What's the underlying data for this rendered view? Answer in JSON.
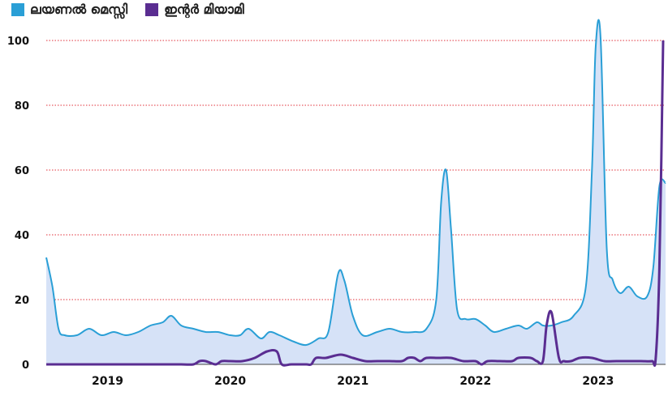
{
  "chart_data": {
    "type": "line",
    "title": "",
    "xlabel": "",
    "ylabel": "",
    "ylim": [
      0,
      100
    ],
    "y_ticks": [
      "0",
      "20",
      "40",
      "60",
      "80",
      "100"
    ],
    "x_tick_labels": [
      "2019",
      "2020",
      "2021",
      "2022",
      "2023"
    ],
    "grid": "horizontal dotted red",
    "legend_position": "top-left",
    "series": [
      {
        "name": "ലയണൽ മെസ്സി",
        "color": "#2a9fd6",
        "fill": "#d6e2f7",
        "points": [
          [
            2018.5,
            33
          ],
          [
            2018.55,
            24
          ],
          [
            2018.6,
            11
          ],
          [
            2018.65,
            9
          ],
          [
            2018.75,
            9
          ],
          [
            2018.85,
            11
          ],
          [
            2018.95,
            9
          ],
          [
            2019.05,
            10
          ],
          [
            2019.15,
            9
          ],
          [
            2019.25,
            10
          ],
          [
            2019.35,
            12
          ],
          [
            2019.45,
            13
          ],
          [
            2019.52,
            15
          ],
          [
            2019.6,
            12
          ],
          [
            2019.7,
            11
          ],
          [
            2019.8,
            10
          ],
          [
            2019.9,
            10
          ],
          [
            2020.0,
            9
          ],
          [
            2020.08,
            9
          ],
          [
            2020.15,
            11
          ],
          [
            2020.25,
            8
          ],
          [
            2020.32,
            10
          ],
          [
            2020.4,
            9
          ],
          [
            2020.52,
            7
          ],
          [
            2020.62,
            6
          ],
          [
            2020.72,
            8
          ],
          [
            2020.8,
            10
          ],
          [
            2020.88,
            28
          ],
          [
            2020.93,
            26
          ],
          [
            2021.0,
            15
          ],
          [
            2021.08,
            9
          ],
          [
            2021.2,
            10
          ],
          [
            2021.3,
            11
          ],
          [
            2021.4,
            10
          ],
          [
            2021.5,
            10
          ],
          [
            2021.6,
            11
          ],
          [
            2021.68,
            20
          ],
          [
            2021.72,
            50
          ],
          [
            2021.76,
            60
          ],
          [
            2021.8,
            42
          ],
          [
            2021.85,
            17
          ],
          [
            2021.92,
            14
          ],
          [
            2022.0,
            14
          ],
          [
            2022.08,
            12
          ],
          [
            2022.15,
            10
          ],
          [
            2022.25,
            11
          ],
          [
            2022.35,
            12
          ],
          [
            2022.42,
            11
          ],
          [
            2022.5,
            13
          ],
          [
            2022.55,
            12
          ],
          [
            2022.62,
            12
          ],
          [
            2022.7,
            13
          ],
          [
            2022.8,
            15
          ],
          [
            2022.9,
            24
          ],
          [
            2022.95,
            60
          ],
          [
            2022.98,
            98
          ],
          [
            2023.02,
            101
          ],
          [
            2023.07,
            36
          ],
          [
            2023.12,
            26
          ],
          [
            2023.18,
            22
          ],
          [
            2023.25,
            24
          ],
          [
            2023.32,
            21
          ],
          [
            2023.4,
            21
          ],
          [
            2023.45,
            30
          ],
          [
            2023.5,
            55
          ],
          [
            2023.55,
            56
          ]
        ]
      },
      {
        "name": "ഇന്റർ മിയാമി",
        "color": "#5a2d91",
        "points": [
          [
            2018.5,
            0
          ],
          [
            2018.65,
            0
          ],
          [
            2018.8,
            0
          ],
          [
            2019.0,
            0
          ],
          [
            2019.2,
            0
          ],
          [
            2019.4,
            0
          ],
          [
            2019.6,
            0
          ],
          [
            2019.7,
            0
          ],
          [
            2019.75,
            1
          ],
          [
            2019.8,
            1
          ],
          [
            2019.88,
            0
          ],
          [
            2019.93,
            1
          ],
          [
            2020.0,
            1
          ],
          [
            2020.1,
            1
          ],
          [
            2020.2,
            2
          ],
          [
            2020.3,
            4
          ],
          [
            2020.38,
            4
          ],
          [
            2020.42,
            0
          ],
          [
            2020.5,
            0
          ],
          [
            2020.62,
            0
          ],
          [
            2020.66,
            0
          ],
          [
            2020.7,
            2
          ],
          [
            2020.78,
            2
          ],
          [
            2020.9,
            3
          ],
          [
            2021.0,
            2
          ],
          [
            2021.1,
            1
          ],
          [
            2021.2,
            1
          ],
          [
            2021.3,
            1
          ],
          [
            2021.4,
            1
          ],
          [
            2021.45,
            2
          ],
          [
            2021.5,
            2
          ],
          [
            2021.55,
            1
          ],
          [
            2021.6,
            2
          ],
          [
            2021.7,
            2
          ],
          [
            2021.8,
            2
          ],
          [
            2021.9,
            1
          ],
          [
            2022.0,
            1
          ],
          [
            2022.05,
            0
          ],
          [
            2022.1,
            1
          ],
          [
            2022.2,
            1
          ],
          [
            2022.3,
            1
          ],
          [
            2022.35,
            2
          ],
          [
            2022.45,
            2
          ],
          [
            2022.5,
            1
          ],
          [
            2022.55,
            1
          ],
          [
            2022.58,
            12
          ],
          [
            2022.62,
            16
          ],
          [
            2022.68,
            2
          ],
          [
            2022.72,
            1
          ],
          [
            2022.78,
            1
          ],
          [
            2022.85,
            2
          ],
          [
            2022.95,
            2
          ],
          [
            2023.05,
            1
          ],
          [
            2023.15,
            1
          ],
          [
            2023.25,
            1
          ],
          [
            2023.35,
            1
          ],
          [
            2023.44,
            1
          ],
          [
            2023.47,
            2
          ],
          [
            2023.5,
            30
          ],
          [
            2023.53,
            100
          ]
        ]
      }
    ]
  }
}
